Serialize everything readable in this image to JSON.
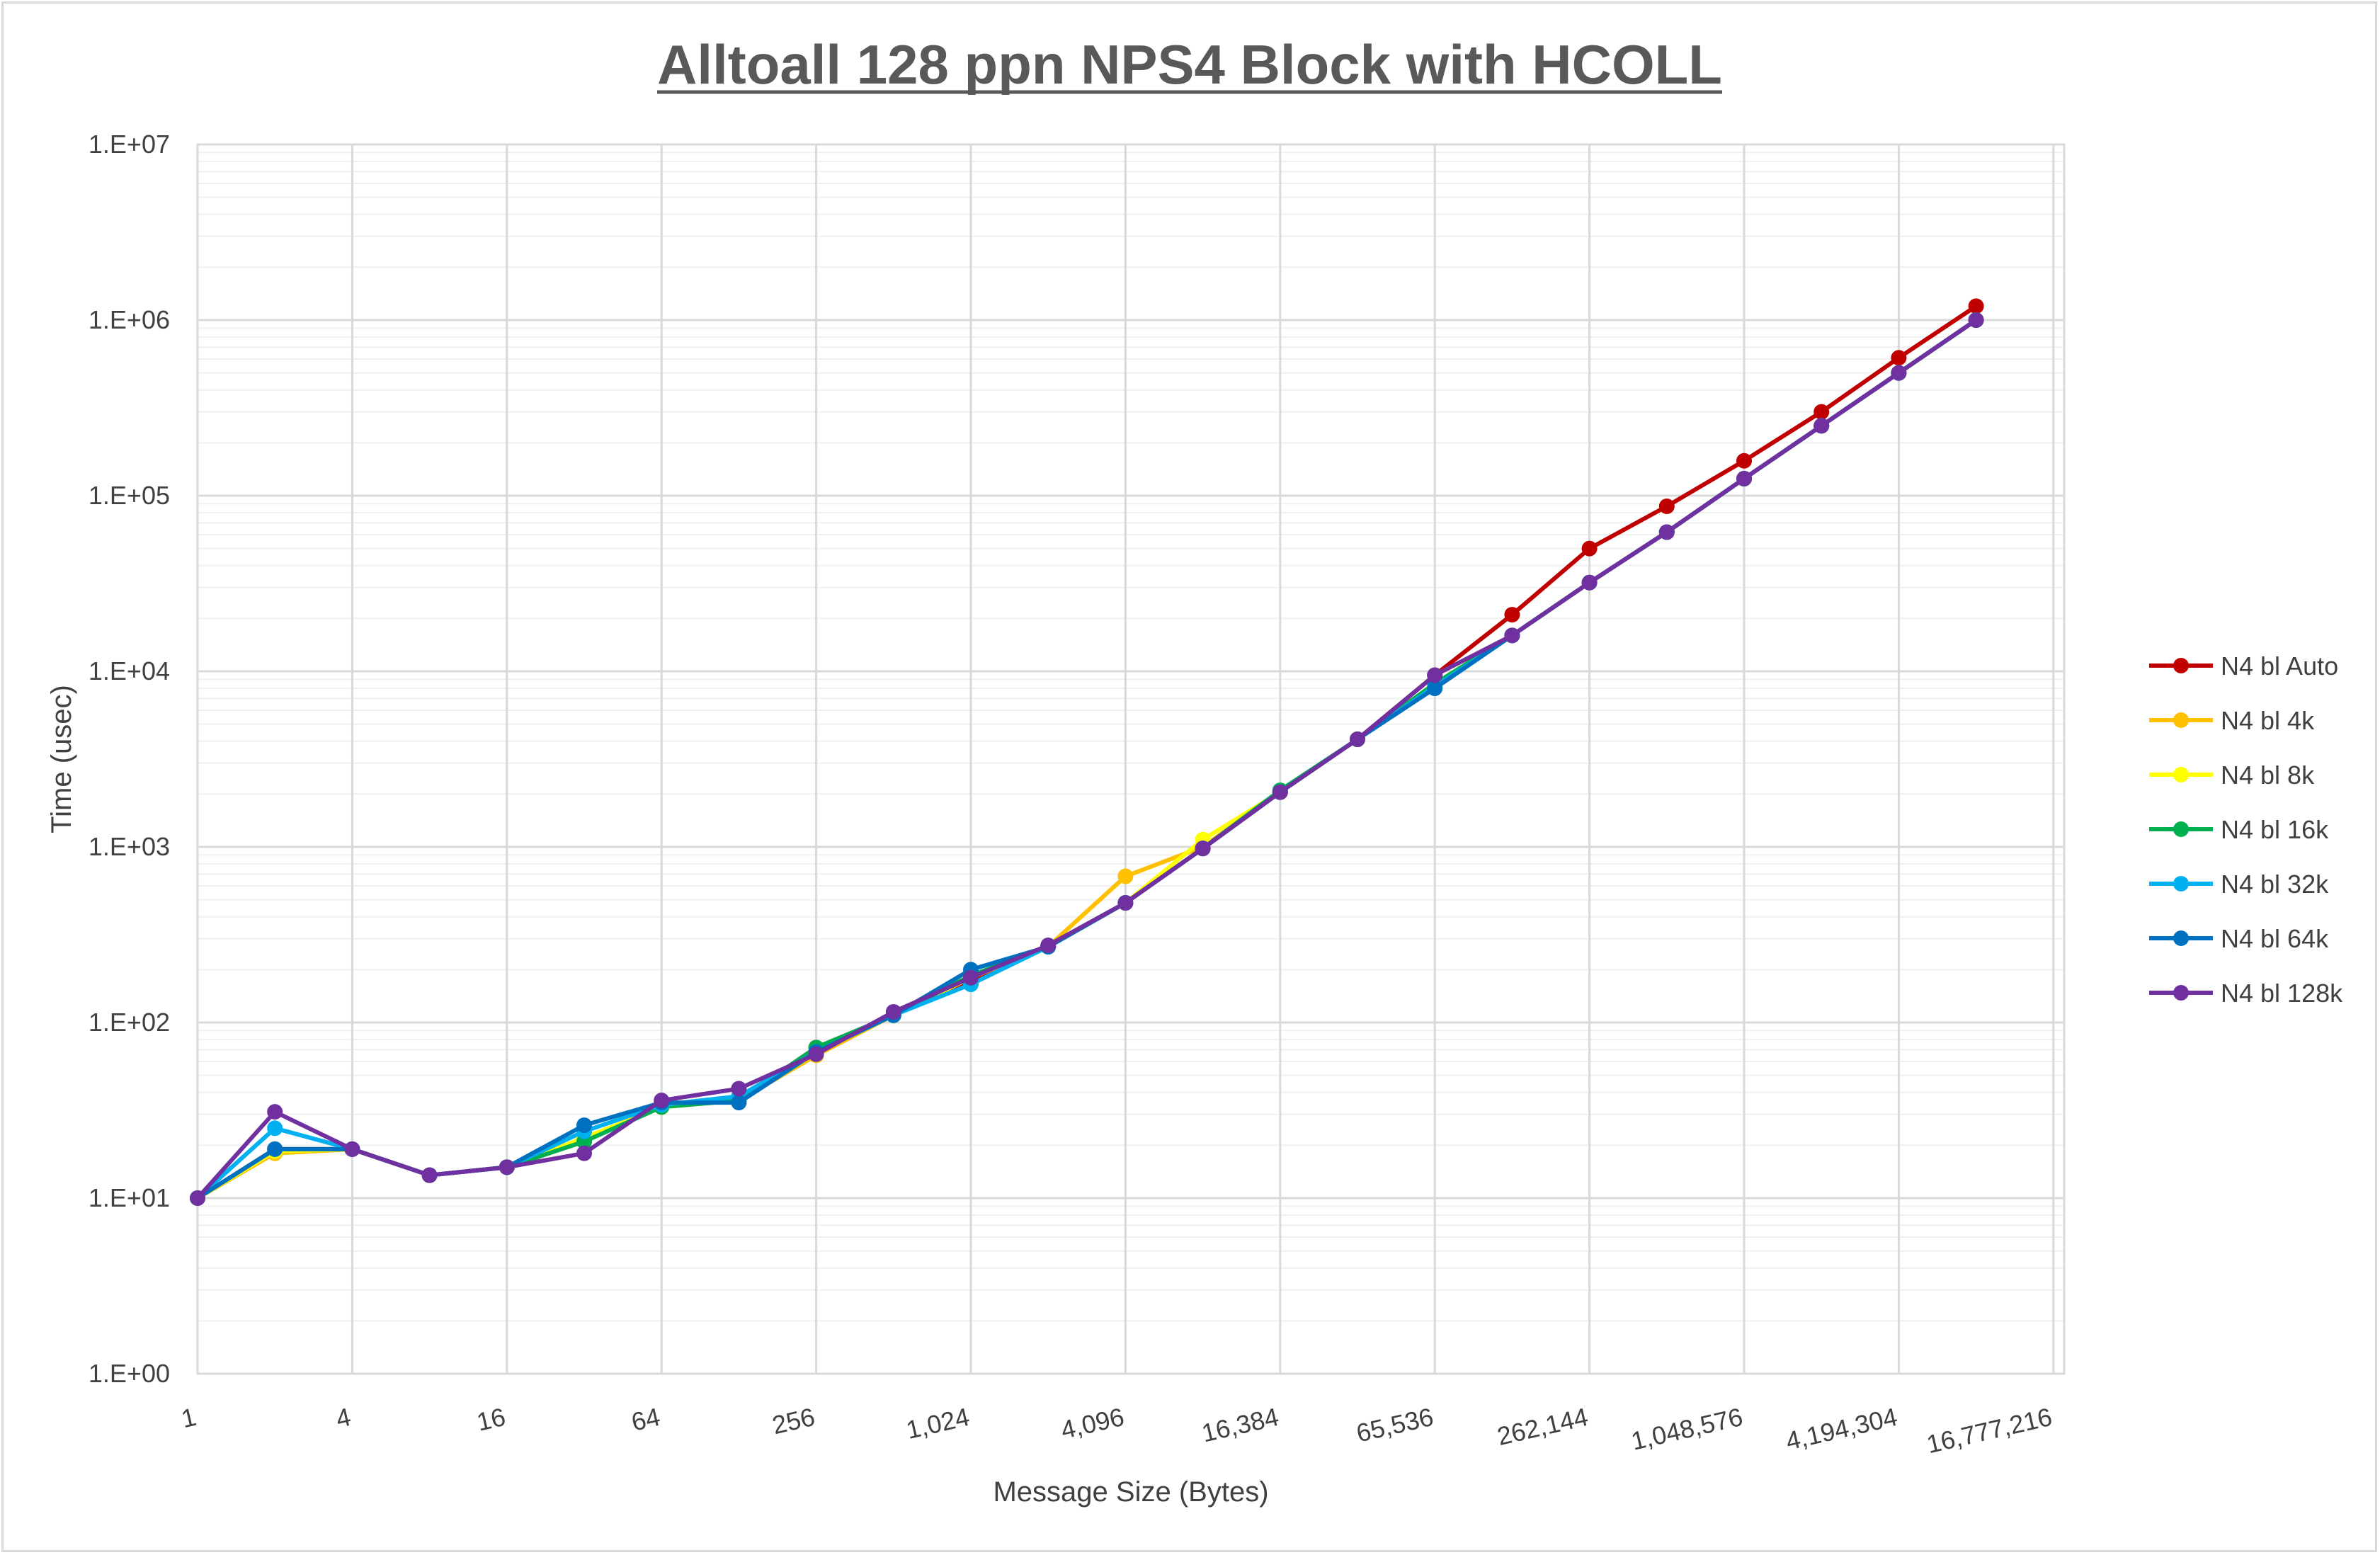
{
  "chart_data": {
    "type": "line",
    "title": "Alltoall 128 ppn NPS4 Block with HCOLL",
    "xlabel": "Message Size (Bytes)",
    "ylabel": "Time (usec)",
    "x_scale": "log2",
    "y_scale": "log10",
    "ylim": [
      1,
      10000000
    ],
    "y_tick_labels": [
      "1.E+00",
      "1.E+01",
      "1.E+02",
      "1.E+03",
      "1.E+04",
      "1.E+05",
      "1.E+06",
      "1.E+07"
    ],
    "x_tick_labels": [
      "1",
      "4",
      "16",
      "64",
      "256",
      "1,024",
      "4,096",
      "16,384",
      "65,536",
      "262,144",
      "1,048,576",
      "4,194,304",
      "16,777,216"
    ],
    "x": [
      1,
      2,
      4,
      8,
      16,
      32,
      64,
      128,
      256,
      512,
      1024,
      2048,
      4096,
      8192,
      16384,
      32768,
      65536,
      131072,
      262144,
      524288,
      1048576,
      2097152,
      4194304,
      8388608
    ],
    "grid": true,
    "legend_position": "right",
    "series": [
      {
        "name": "N4 bl Auto",
        "color": "#c00000",
        "values": [
          10,
          19,
          19,
          13.5,
          15,
          21,
          34,
          36,
          72,
          110,
          175,
          270,
          480,
          980,
          2050,
          4100,
          9500,
          21000,
          50000,
          87000,
          158000,
          300000,
          610000,
          1200000
        ]
      },
      {
        "name": "N4 bl 4k",
        "color": "#ffc000",
        "values": [
          10,
          18,
          19,
          13.5,
          15,
          22,
          33,
          36,
          65,
          110,
          180,
          270,
          680,
          1000,
          2050,
          4100,
          8500,
          16000,
          32000,
          62000,
          125000,
          250000,
          500000,
          1000000
        ]
      },
      {
        "name": "N4 bl 8k",
        "color": "#ffff00",
        "values": [
          10,
          18.5,
          19,
          13.5,
          15,
          22,
          33,
          36,
          68,
          110,
          180,
          270,
          480,
          1100,
          2050,
          4100,
          8500,
          16000,
          32000,
          62000,
          125000,
          250000,
          500000,
          1000000
        ]
      },
      {
        "name": "N4 bl 16k",
        "color": "#00b050",
        "values": [
          10,
          19,
          19,
          13.5,
          15,
          21,
          33,
          36,
          72,
          110,
          185,
          270,
          480,
          980,
          2100,
          4100,
          8500,
          16000,
          32000,
          62000,
          125000,
          250000,
          500000,
          1000000
        ]
      },
      {
        "name": "N4 bl 32k",
        "color": "#00b0f0",
        "values": [
          10,
          25,
          19,
          13.5,
          15,
          24,
          34,
          38,
          68,
          110,
          165,
          270,
          480,
          980,
          2050,
          4100,
          8200,
          16000,
          32000,
          62000,
          125000,
          250000,
          500000,
          1000000
        ]
      },
      {
        "name": "N4 bl 64k",
        "color": "#0070c0",
        "values": [
          10,
          19,
          19,
          13.5,
          15,
          26,
          35,
          35,
          68,
          110,
          200,
          270,
          480,
          980,
          2050,
          4100,
          8000,
          16000,
          32000,
          62000,
          125000,
          250000,
          500000,
          1000000
        ]
      },
      {
        "name": "N4 bl 128k",
        "color": "#7030a0",
        "values": [
          10,
          31,
          19,
          13.5,
          15,
          18,
          36,
          42,
          66,
          115,
          180,
          275,
          480,
          980,
          2050,
          4100,
          9500,
          16000,
          32000,
          62000,
          125000,
          250000,
          500000,
          1000000
        ]
      }
    ]
  }
}
